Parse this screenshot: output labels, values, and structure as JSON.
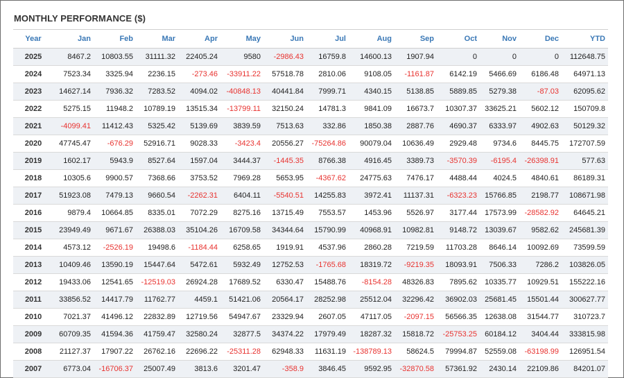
{
  "title": "MONTHLY PERFORMANCE ($)",
  "colors": {
    "header": "#3a78b6",
    "negative": "#e8322f",
    "stripe": "#eef1f5"
  },
  "table": {
    "headers": [
      "Year",
      "Jan",
      "Feb",
      "Mar",
      "Apr",
      "May",
      "Jun",
      "Jul",
      "Aug",
      "Sep",
      "Oct",
      "Nov",
      "Dec",
      "YTD"
    ],
    "rows": [
      [
        "2025",
        "8467.2",
        "10803.55",
        "31111.32",
        "22405.24",
        "9580",
        "-2986.43",
        "16759.8",
        "14600.13",
        "1907.94",
        "0",
        "0",
        "0",
        "112648.75"
      ],
      [
        "2024",
        "7523.34",
        "3325.94",
        "2236.15",
        "-273.46",
        "-33911.22",
        "57518.78",
        "2810.06",
        "9108.05",
        "-1161.87",
        "6142.19",
        "5466.69",
        "6186.48",
        "64971.13"
      ],
      [
        "2023",
        "14627.14",
        "7936.32",
        "7283.52",
        "4094.02",
        "-40848.13",
        "40441.84",
        "7999.71",
        "4340.15",
        "5138.85",
        "5889.85",
        "5279.38",
        "-87.03",
        "62095.62"
      ],
      [
        "2022",
        "5275.15",
        "11948.2",
        "10789.19",
        "13515.34",
        "-13799.11",
        "32150.24",
        "14781.3",
        "9841.09",
        "16673.7",
        "10307.37",
        "33625.21",
        "5602.12",
        "150709.8"
      ],
      [
        "2021",
        "-4099.41",
        "11412.43",
        "5325.42",
        "5139.69",
        "3839.59",
        "7513.63",
        "332.86",
        "1850.38",
        "2887.76",
        "4690.37",
        "6333.97",
        "4902.63",
        "50129.32"
      ],
      [
        "2020",
        "47745.47",
        "-676.29",
        "52916.71",
        "9028.33",
        "-3423.4",
        "20556.27",
        "-75264.86",
        "90079.04",
        "10636.49",
        "2929.48",
        "9734.6",
        "8445.75",
        "172707.59"
      ],
      [
        "2019",
        "1602.17",
        "5943.9",
        "8527.64",
        "1597.04",
        "3444.37",
        "-1445.35",
        "8766.38",
        "4916.45",
        "3389.73",
        "-3570.39",
        "-6195.4",
        "-26398.91",
        "577.63"
      ],
      [
        "2018",
        "10305.6",
        "9900.57",
        "7368.66",
        "3753.52",
        "7969.28",
        "5653.95",
        "-4367.62",
        "24775.63",
        "7476.17",
        "4488.44",
        "4024.5",
        "4840.61",
        "86189.31"
      ],
      [
        "2017",
        "51923.08",
        "7479.13",
        "9660.54",
        "-2262.31",
        "6404.11",
        "-5540.51",
        "14255.83",
        "3972.41",
        "11137.31",
        "-6323.23",
        "15766.85",
        "2198.77",
        "108671.98"
      ],
      [
        "2016",
        "9879.4",
        "10664.85",
        "8335.01",
        "7072.29",
        "8275.16",
        "13715.49",
        "7553.57",
        "1453.96",
        "5526.97",
        "3177.44",
        "17573.99",
        "-28582.92",
        "64645.21"
      ],
      [
        "2015",
        "23949.49",
        "9671.67",
        "26388.03",
        "35104.26",
        "16709.58",
        "34344.64",
        "15790.99",
        "40968.91",
        "10982.81",
        "9148.72",
        "13039.67",
        "9582.62",
        "245681.39"
      ],
      [
        "2014",
        "4573.12",
        "-2526.19",
        "19498.6",
        "-1184.44",
        "6258.65",
        "1919.91",
        "4537.96",
        "2860.28",
        "7219.59",
        "11703.28",
        "8646.14",
        "10092.69",
        "73599.59"
      ],
      [
        "2013",
        "10409.46",
        "13590.19",
        "15447.64",
        "5472.61",
        "5932.49",
        "12752.53",
        "-1765.68",
        "18319.72",
        "-9219.35",
        "18093.91",
        "7506.33",
        "7286.2",
        "103826.05"
      ],
      [
        "2012",
        "19433.06",
        "12541.65",
        "-12519.03",
        "26924.28",
        "17689.52",
        "6330.47",
        "15488.76",
        "-8154.28",
        "48326.83",
        "7895.62",
        "10335.77",
        "10929.51",
        "155222.16"
      ],
      [
        "2011",
        "33856.52",
        "14417.79",
        "11762.77",
        "4459.1",
        "51421.06",
        "20564.17",
        "28252.98",
        "25512.04",
        "32296.42",
        "36902.03",
        "25681.45",
        "15501.44",
        "300627.77"
      ],
      [
        "2010",
        "7021.37",
        "41496.12",
        "22832.89",
        "12719.56",
        "54947.67",
        "23329.94",
        "2607.05",
        "47117.05",
        "-2097.15",
        "56566.35",
        "12638.08",
        "31544.77",
        "310723.7"
      ],
      [
        "2009",
        "60709.35",
        "41594.36",
        "41759.47",
        "32580.24",
        "32877.5",
        "34374.22",
        "17979.49",
        "18287.32",
        "15818.72",
        "-25753.25",
        "60184.12",
        "3404.44",
        "333815.98"
      ],
      [
        "2008",
        "21127.37",
        "17907.22",
        "26762.16",
        "22696.22",
        "-25311.28",
        "62948.33",
        "11631.19",
        "-138789.13",
        "58624.5",
        "79994.87",
        "52559.08",
        "-63198.99",
        "126951.54"
      ],
      [
        "2007",
        "6773.04",
        "-16706.37",
        "25007.49",
        "3813.6",
        "3201.47",
        "-358.9",
        "3846.45",
        "9592.95",
        "-32870.58",
        "57361.92",
        "2430.14",
        "22109.86",
        "84201.07"
      ]
    ]
  }
}
